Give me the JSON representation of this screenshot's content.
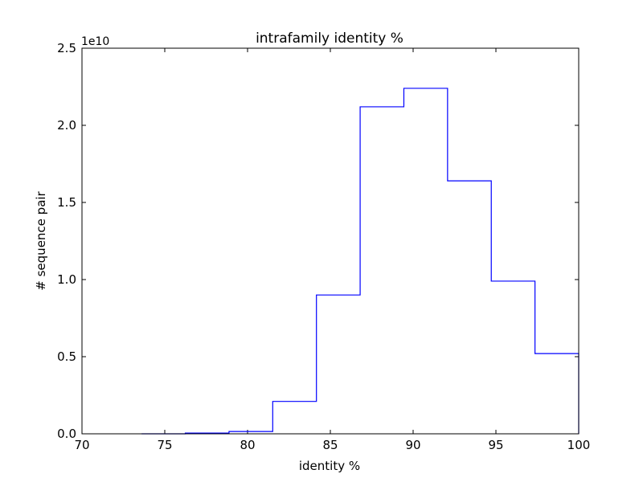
{
  "chart_data": {
    "type": "histogram",
    "title": "intrafamily identity %",
    "xlabel": "identity %",
    "ylabel": "# sequence pair",
    "offset_label": "1e10",
    "xlim": [
      70,
      100
    ],
    "ylim": [
      0,
      2.5
    ],
    "x_ticks": [
      70,
      75,
      80,
      85,
      90,
      95,
      100
    ],
    "y_ticks": [
      0.0,
      0.5,
      1.0,
      1.5,
      2.0,
      2.5
    ],
    "x_tick_labels": [
      "70",
      "75",
      "80",
      "85",
      "90",
      "95",
      "100"
    ],
    "y_tick_labels": [
      "0.0",
      "0.5",
      "1.0",
      "1.5",
      "2.0",
      "2.5"
    ],
    "bin_edges": [
      73.6,
      76.24,
      78.88,
      81.52,
      84.16,
      86.8,
      89.44,
      92.08,
      94.72,
      97.36,
      100.0
    ],
    "values": [
      0.0,
      0.005,
      0.015,
      0.21,
      0.9,
      2.12,
      2.24,
      1.64,
      0.99,
      0.52
    ],
    "line_color": "#0000ff",
    "grid": false
  }
}
